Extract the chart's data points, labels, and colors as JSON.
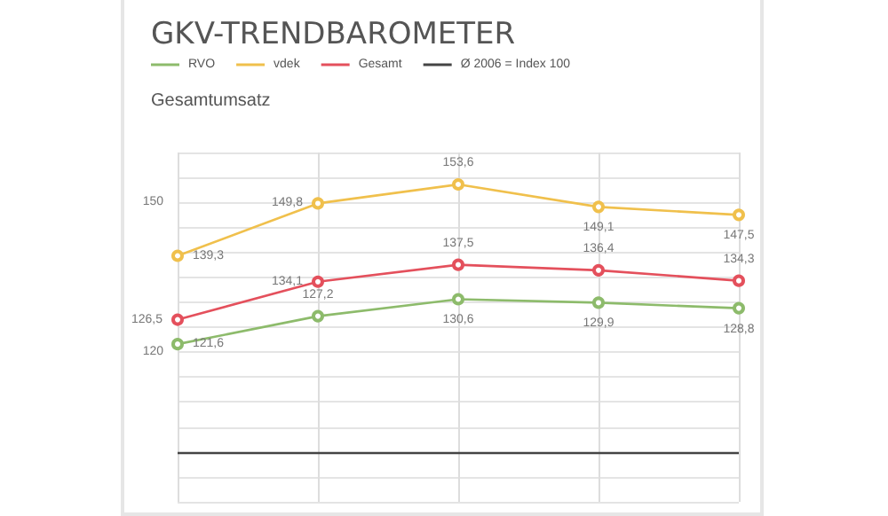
{
  "chart_data": {
    "type": "line",
    "title": "GKV-TRENDBAROMETER",
    "subtitle": "Gesamtumsatz",
    "categories": [
      null,
      null,
      null,
      null,
      null
    ],
    "series": [
      {
        "name": "RVO",
        "color": "#8dbb6b",
        "values": [
          121.6,
          127.2,
          130.6,
          129.9,
          128.8
        ],
        "value_labels": [
          "121,6",
          "127,2",
          "130,6",
          "129,9",
          "128,8"
        ]
      },
      {
        "name": "vdek",
        "color": "#f0c04c",
        "values": [
          139.3,
          149.8,
          153.6,
          149.1,
          147.5
        ],
        "value_labels": [
          "139,3",
          "149,8",
          "153,6",
          "149,1",
          "147,5"
        ]
      },
      {
        "name": "Gesamt",
        "color": "#e4505c",
        "values": [
          126.5,
          134.1,
          137.5,
          136.4,
          134.3
        ],
        "value_labels": [
          "126,5",
          "134,1",
          "137,5",
          "136,4",
          "134,3"
        ]
      }
    ],
    "ref_lines": [
      {
        "axis": "y",
        "value": 100,
        "label": "Ø 2006 = Index 100",
        "color": "#444444",
        "line_style": "solid"
      }
    ],
    "ylim": [
      90,
      160
    ],
    "yticks": [
      {
        "value": 90,
        "label": null
      },
      {
        "value": 95,
        "label": null
      },
      {
        "value": 100,
        "label": null
      },
      {
        "value": 105,
        "label": null
      },
      {
        "value": 110,
        "label": null
      },
      {
        "value": 115,
        "label": null
      },
      120,
      {
        "value": 125,
        "label": null
      },
      {
        "value": 130,
        "label": null
      },
      {
        "value": 135,
        "label": null
      },
      {
        "value": 140,
        "label": null
      },
      {
        "value": 145,
        "label": null
      },
      150,
      {
        "value": 155,
        "label": null
      },
      {
        "value": 160,
        "label": null
      }
    ],
    "grid": true,
    "legend": "top left",
    "marker": "circle",
    "line_style": "solid"
  }
}
